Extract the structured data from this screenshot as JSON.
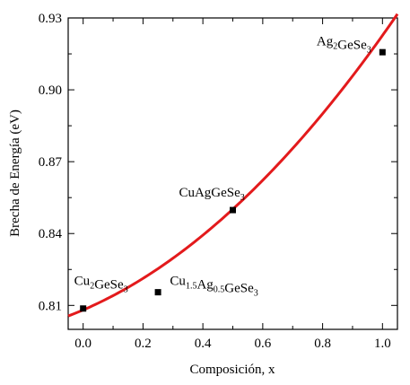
{
  "chart_data": {
    "type": "scatter",
    "xlabel": "Composición, x",
    "ylabel": "Brecha de Energía (eV)",
    "xlim": [
      -0.05,
      1.05
    ],
    "ylim": [
      0.8,
      0.93
    ],
    "xticks": [
      0.0,
      0.2,
      0.4,
      0.6,
      0.8,
      1.0
    ],
    "xtick_labels": [
      "0.0",
      "0.2",
      "0.4",
      "0.6",
      "0.8",
      "1.0"
    ],
    "yticks": [
      0.81,
      0.84,
      0.87,
      0.9,
      0.93
    ],
    "ytick_labels": [
      "0.81",
      "0.84",
      "0.87",
      "0.90",
      "0.93"
    ],
    "grid": false,
    "points": [
      {
        "x": 0.0,
        "y": 0.8087
      },
      {
        "x": 0.25,
        "y": 0.8155
      },
      {
        "x": 0.5,
        "y": 0.8498
      },
      {
        "x": 1.0,
        "y": 0.9157
      }
    ],
    "fit_curve": {
      "color": "#e31a1c",
      "form": "quadratic",
      "coefficients": {
        "a": 0.0609,
        "b": 0.0537,
        "c": 0.8081
      }
    },
    "annotations": [
      {
        "parts": [
          {
            "t": "Cu"
          },
          {
            "t": "2",
            "sub": true
          },
          {
            "t": "GeSe"
          },
          {
            "t": "3",
            "sub": true
          }
        ],
        "x": -0.03,
        "y": 0.8185
      },
      {
        "parts": [
          {
            "t": "Cu"
          },
          {
            "t": "1.5",
            "sub": true
          },
          {
            "t": "Ag"
          },
          {
            "t": "0.5",
            "sub": true
          },
          {
            "t": "GeSe"
          },
          {
            "t": "3",
            "sub": true
          }
        ],
        "x": 0.29,
        "y": 0.8185
      },
      {
        "parts": [
          {
            "t": "CuAgGeSe"
          },
          {
            "t": "3",
            "sub": true
          }
        ],
        "x": 0.32,
        "y": 0.8555
      },
      {
        "parts": [
          {
            "t": "Ag"
          },
          {
            "t": "2",
            "sub": true
          },
          {
            "t": "GeSe"
          },
          {
            "t": "3",
            "sub": true
          }
        ],
        "x": 0.78,
        "y": 0.9185
      }
    ]
  }
}
